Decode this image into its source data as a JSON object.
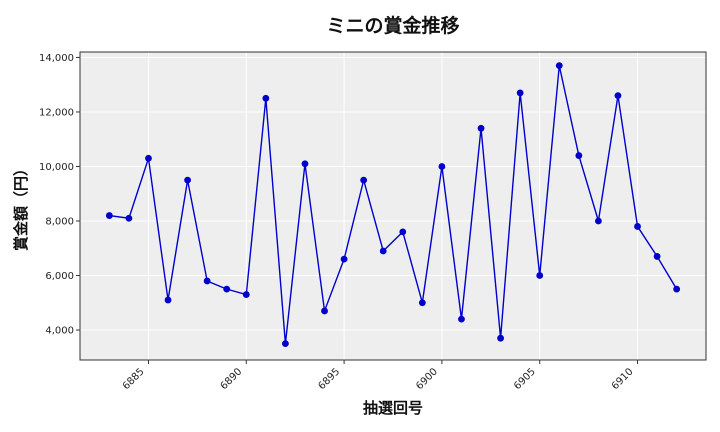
{
  "chart_data": {
    "type": "line",
    "title": "ミニの賞金推移",
    "xlabel": "抽選回号",
    "ylabel": "賞金額（円）",
    "x": [
      6883,
      6884,
      6885,
      6886,
      6887,
      6888,
      6889,
      6890,
      6891,
      6892,
      6893,
      6894,
      6895,
      6896,
      6897,
      6898,
      6899,
      6900,
      6901,
      6902,
      6903,
      6904,
      6905,
      6906,
      6907,
      6908,
      6909,
      6910,
      6911,
      6912
    ],
    "series": [
      {
        "values": [
          8200,
          8100,
          10300,
          5100,
          9500,
          5800,
          5500,
          5300,
          12500,
          3500,
          10100,
          4700,
          6600,
          9500,
          6900,
          7600,
          5000,
          10000,
          4400,
          11400,
          3700,
          12700,
          6000,
          13700,
          10400,
          8000,
          12600,
          7800,
          6700,
          5500
        ],
        "color": "#0000cc"
      }
    ],
    "xlim": [
      6881.5,
      6913.5
    ],
    "ylim": [
      2900,
      14200
    ],
    "xticks": [
      6885,
      6890,
      6895,
      6900,
      6905,
      6910
    ],
    "xtick_labels": [
      "6885",
      "6890",
      "6895",
      "6900",
      "6905",
      "6910"
    ],
    "yticks": [
      4000,
      6000,
      8000,
      10000,
      12000,
      14000
    ],
    "ytick_labels": [
      "4,000",
      "6,000",
      "8,000",
      "10,000",
      "12,000",
      "14,000"
    ],
    "grid": true,
    "background_color": "#eeeeee",
    "grid_color": "#ffffff"
  }
}
